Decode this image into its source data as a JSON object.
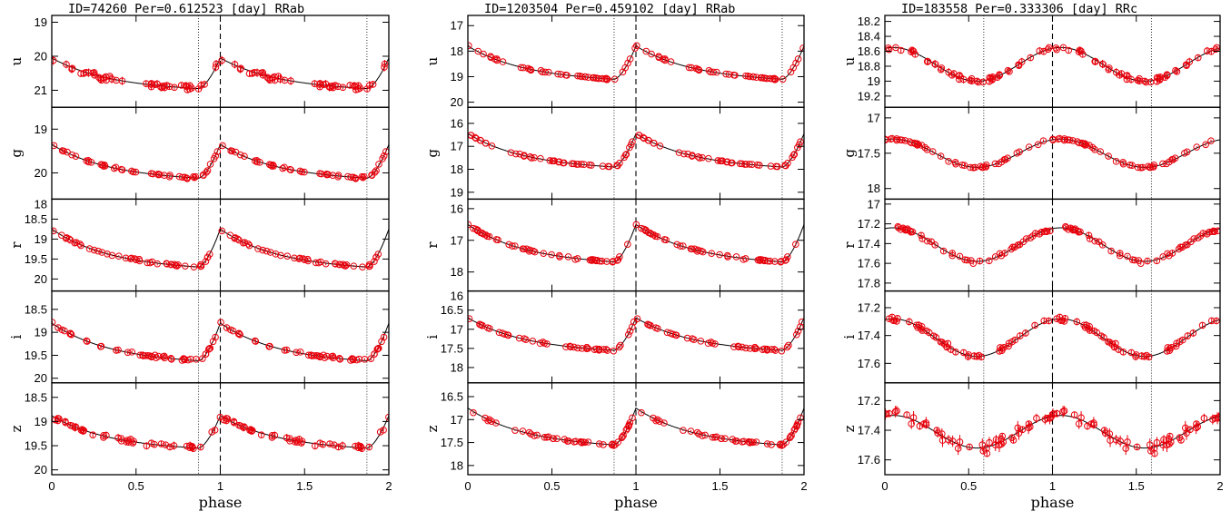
{
  "colors": {
    "points": "#e8000b",
    "model": "#000000",
    "axes": "#000000",
    "background": "#ffffff"
  },
  "chart_data": [
    {
      "type": "scatter",
      "title": "ID=74260   Per=0.612523 [day] RRab",
      "xlabel": "phase",
      "xlim": [
        0,
        2
      ],
      "x_ticks": [
        0,
        0.5,
        1,
        1.5,
        2
      ],
      "x_tick_labels": [
        "0",
        "0.5",
        "1",
        "1.5",
        "2"
      ],
      "y_inverted": true,
      "reference_lines": {
        "dashed_phase": 1.0,
        "dotted_phases": [
          0.87,
          1.87
        ]
      },
      "curve": {
        "shape": "rrab",
        "min_phase": 0.87,
        "max_phase": 1.0
      },
      "panels": [
        {
          "band": "u",
          "ylim": [
            21.5,
            18.8
          ],
          "yticks": [
            19,
            20,
            21
          ],
          "ytick_labels": [
            "19",
            "20",
            "21"
          ],
          "bright": 20.05,
          "faint": 20.95,
          "scatter": 0.14
        },
        {
          "band": "g",
          "ylim": [
            20.6,
            18.5
          ],
          "yticks": [
            19,
            20
          ],
          "ytick_labels": [
            "19",
            "20"
          ],
          "bright": 19.35,
          "faint": 20.12,
          "scatter": 0.05
        },
        {
          "band": "r",
          "ylim": [
            20.3,
            18.0
          ],
          "yticks": [
            18,
            18.5,
            19,
            19.5,
            20
          ],
          "ytick_labels": [
            "18",
            "18.5",
            "19",
            "19.5",
            "20"
          ],
          "bright": 18.75,
          "faint": 19.7,
          "scatter": 0.05
        },
        {
          "band": "i",
          "ylim": [
            20.1,
            18.1
          ],
          "yticks": [
            18.5,
            19,
            19.5,
            20
          ],
          "ytick_labels": [
            "18.5",
            "19",
            "19.5",
            "20"
          ],
          "bright": 18.8,
          "faint": 19.62,
          "scatter": 0.05
        },
        {
          "band": "z",
          "ylim": [
            20.1,
            18.2
          ],
          "yticks": [
            18.5,
            19,
            19.5,
            20
          ],
          "ytick_labels": [
            "18.5",
            "19",
            "19.5",
            "20"
          ],
          "bright": 18.88,
          "faint": 19.55,
          "scatter": 0.09
        }
      ]
    },
    {
      "type": "scatter",
      "title": "ID=1203504   Per=0.459102 [day] RRab",
      "xlabel": "phase",
      "xlim": [
        0,
        2
      ],
      "x_ticks": [
        0,
        0.5,
        1,
        1.5,
        2
      ],
      "x_tick_labels": [
        "0",
        "0.5",
        "1",
        "1.5",
        "2"
      ],
      "y_inverted": true,
      "reference_lines": {
        "dashed_phase": 1.0,
        "dotted_phases": [
          0.87,
          1.87
        ]
      },
      "curve": {
        "shape": "rrab",
        "min_phase": 0.87,
        "max_phase": 1.0
      },
      "panels": [
        {
          "band": "u",
          "ylim": [
            20.2,
            16.6
          ],
          "yticks": [
            17,
            18,
            19,
            20
          ],
          "ytick_labels": [
            "17",
            "18",
            "19",
            "20"
          ],
          "bright": 17.8,
          "faint": 19.1,
          "scatter": 0.05
        },
        {
          "band": "g",
          "ylim": [
            19.3,
            15.3
          ],
          "yticks": [
            15,
            16,
            17,
            18,
            19
          ],
          "ytick_labels": [
            "15",
            "16",
            "17",
            "18",
            "19"
          ],
          "bright": 16.45,
          "faint": 17.9,
          "scatter": 0.05
        },
        {
          "band": "r",
          "ylim": [
            18.6,
            15.7
          ],
          "yticks": [
            16,
            17,
            18
          ],
          "ytick_labels": [
            "16",
            "17",
            "18"
          ],
          "bright": 16.5,
          "faint": 17.68,
          "scatter": 0.05
        },
        {
          "band": "i",
          "ylim": [
            18.4,
            16.0
          ],
          "yticks": [
            16,
            16.5,
            17,
            17.5,
            18
          ],
          "ytick_labels": [
            "16",
            "16.5",
            "17",
            "17.5",
            "18"
          ],
          "bright": 16.7,
          "faint": 17.55,
          "scatter": 0.04
        },
        {
          "band": "z",
          "ylim": [
            18.2,
            16.2
          ],
          "yticks": [
            16.5,
            17,
            17.5,
            18
          ],
          "ytick_labels": [
            "16.5",
            "17",
            "17.5",
            "18"
          ],
          "bright": 16.75,
          "faint": 17.55,
          "scatter": 0.04
        }
      ]
    },
    {
      "type": "scatter",
      "title": "ID=183558   Per=0.333306 [day] RRc",
      "xlabel": "phase",
      "xlim": [
        0,
        2
      ],
      "x_ticks": [
        0,
        0.5,
        1,
        1.5,
        2
      ],
      "x_tick_labels": [
        "0",
        "0.5",
        "1",
        "1.5",
        "2"
      ],
      "y_inverted": true,
      "reference_lines": {
        "dashed_phase": 1.0,
        "dotted_phases": [
          0.59,
          1.59
        ]
      },
      "curve": {
        "shape": "rrc",
        "min_phase": 0.59,
        "max_phase": 1.05
      },
      "panels": [
        {
          "band": "u",
          "ylim": [
            19.35,
            18.12
          ],
          "yticks": [
            18.2,
            18.4,
            18.6,
            18.8,
            19,
            19.2
          ],
          "ytick_labels": [
            "18.2",
            "18.4",
            "18.6",
            "18.8",
            "19",
            "19.2"
          ],
          "bright": 18.55,
          "faint": 19.0,
          "scatter": 0.06
        },
        {
          "band": "g",
          "ylim": [
            18.15,
            16.85
          ],
          "yticks": [
            17,
            17.5,
            18
          ],
          "ytick_labels": [
            "17",
            "17.5",
            "18"
          ],
          "bright": 17.3,
          "faint": 17.7,
          "scatter": 0.03
        },
        {
          "band": "r",
          "ylim": [
            17.88,
            16.95
          ],
          "yticks": [
            17,
            17.2,
            17.4,
            17.6,
            17.8
          ],
          "ytick_labels": [
            "17",
            "17.2",
            "17.4",
            "17.6",
            "17.8"
          ],
          "bright": 17.24,
          "faint": 17.58,
          "scatter": 0.03
        },
        {
          "band": "i",
          "ylim": [
            17.74,
            17.08
          ],
          "yticks": [
            17.2,
            17.4,
            17.6
          ],
          "ytick_labels": [
            "17.2",
            "17.4",
            "17.6"
          ],
          "bright": 17.28,
          "faint": 17.55,
          "scatter": 0.03
        },
        {
          "band": "z",
          "ylim": [
            17.7,
            17.08
          ],
          "yticks": [
            17.2,
            17.4,
            17.6
          ],
          "ytick_labels": [
            "17.2",
            "17.4",
            "17.6"
          ],
          "bright": 17.3,
          "faint": 17.52,
          "scatter": 0.05
        }
      ]
    }
  ]
}
